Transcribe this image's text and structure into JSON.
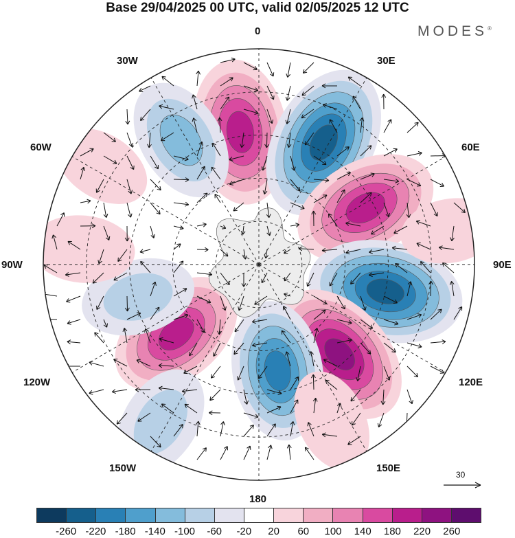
{
  "title": "Base 29/04/2025 00 UTC, valid 02/05/2025 12 UTC",
  "brand": "MODES",
  "brand_mark": "®",
  "longitude_labels": {
    "lon_0": "0",
    "lon_30e": "30E",
    "lon_60e": "60E",
    "lon_90e": "90E",
    "lon_120e": "120E",
    "lon_150e": "150E",
    "lon_180": "180",
    "lon_150w": "150W",
    "lon_120w": "120W",
    "lon_90w": "90W",
    "lon_60w": "60W",
    "lon_30w": "30W"
  },
  "reference_vector": {
    "label": "30"
  },
  "colorbar": {
    "ticks": [
      "-260",
      "-220",
      "-180",
      "-140",
      "-100",
      "-60",
      "-20",
      "20",
      "60",
      "100",
      "140",
      "180",
      "220",
      "260"
    ],
    "colors": [
      "#0d3a5e",
      "#155f8c",
      "#2980b5",
      "#4f9fcc",
      "#84bcdc",
      "#b7d0e6",
      "#e3e3ef",
      "#ffffff",
      "#f8d4dc",
      "#f1aec3",
      "#e883b2",
      "#d94aa0",
      "#b91e8c",
      "#8e1280",
      "#5e0d6e"
    ]
  },
  "map": {
    "projection": "south-polar-stereographic",
    "background_land": "#ededed",
    "ocean": "#ffffff",
    "anomalies": [
      {
        "lon": -8,
        "r": 0.62,
        "value": 220
      },
      {
        "lon": 28,
        "r": 0.64,
        "value": -260
      },
      {
        "lon": 62,
        "r": 0.56,
        "value": 220
      },
      {
        "lon": 102,
        "r": 0.6,
        "value": -260
      },
      {
        "lon": 138,
        "r": 0.56,
        "value": 240
      },
      {
        "lon": 170,
        "r": 0.5,
        "value": -200
      },
      {
        "lon": 155,
        "r": 0.8,
        "value": 60
      },
      {
        "lon": -130,
        "r": 0.5,
        "value": 200
      },
      {
        "lon": -148,
        "r": 0.86,
        "value": -100
      },
      {
        "lon": -105,
        "r": 0.58,
        "value": -100
      },
      {
        "lon": -85,
        "r": 0.82,
        "value": 60
      },
      {
        "lon": -32,
        "r": 0.68,
        "value": -140
      },
      {
        "lon": -58,
        "r": 0.86,
        "value": 40
      },
      {
        "lon": 80,
        "r": 0.9,
        "value": 40
      }
    ]
  }
}
